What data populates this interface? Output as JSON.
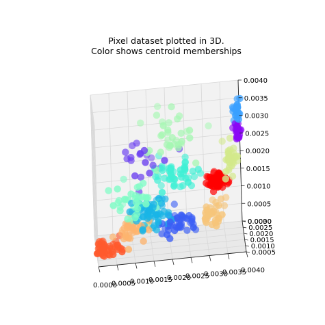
{
  "chart_data": {
    "type": "scatter",
    "dims": 3,
    "title": "Pixel dataset plotted in 3D.",
    "subtitle": "Color shows centroid memberships",
    "xlabel": "",
    "ylabel": "",
    "zlabel": "",
    "grid": true,
    "legend": "none",
    "x_ticks": [
      "0.0000",
      "0.0005",
      "0.0010",
      "0.0015",
      "0.0020",
      "0.0025",
      "0.0030",
      "0.0035",
      "0.0040"
    ],
    "y_ticks": [
      "0.0005",
      "0.0010",
      "0.0015",
      "0.0020",
      "0.0025",
      "0.0030"
    ],
    "z_ticks": [
      "0.0000",
      "0.0005",
      "0.0010",
      "0.0015",
      "0.0020",
      "0.0025",
      "0.0030",
      "0.0035",
      "0.0040"
    ],
    "xlim": [
      0,
      0.004
    ],
    "ylim": [
      0.0005,
      0.003
    ],
    "zlim": [
      0,
      0.004
    ],
    "clusters": [
      {
        "color": "#ff0000",
        "center": [
          0.0033,
          0.0018,
          0.00165
        ],
        "spread": [
          0.00018,
          0.0003,
          0.00015
        ],
        "count": 70
      },
      {
        "color": "#ff5a2d",
        "center": [
          0.0003,
          0.0016,
          0.00013
        ],
        "spread": [
          0.00025,
          0.0004,
          0.00013
        ],
        "count": 45
      },
      {
        "color": "#fdb46e",
        "center": [
          0.001,
          0.0017,
          0.00045
        ],
        "spread": [
          0.0003,
          0.0004,
          0.0002
        ],
        "count": 40
      },
      {
        "color": "#f6c57a",
        "center": [
          0.00315,
          0.0016,
          0.00085
        ],
        "spread": [
          0.0002,
          0.0004,
          0.00025
        ],
        "count": 35
      },
      {
        "color": "#d3e98b",
        "center": [
          0.0037,
          0.0017,
          0.0022
        ],
        "spread": [
          0.00015,
          0.0004,
          0.0003
        ],
        "count": 35
      },
      {
        "color": "#a5f7b2",
        "center": [
          0.0022,
          0.0017,
          0.0031
        ],
        "spread": [
          0.0006,
          0.0004,
          0.00045
        ],
        "count": 35
      },
      {
        "color": "#7ffcc6",
        "center": [
          0.001,
          0.0017,
          0.00135
        ],
        "spread": [
          0.0004,
          0.0004,
          0.00045
        ],
        "count": 40
      },
      {
        "color": "#40f0d5",
        "center": [
          0.0022,
          0.0017,
          0.002
        ],
        "spread": [
          0.0005,
          0.0004,
          0.0003
        ],
        "count": 50
      },
      {
        "color": "#19b5e6",
        "center": [
          0.0015,
          0.0017,
          0.0009
        ],
        "spread": [
          0.0004,
          0.0004,
          0.0003
        ],
        "count": 65
      },
      {
        "color": "#3b5ef5",
        "center": [
          0.0022,
          0.0016,
          0.00065
        ],
        "spread": [
          0.00035,
          0.0004,
          0.00025
        ],
        "count": 45
      },
      {
        "color": "#6a3ff0",
        "center": [
          0.0013,
          0.0017,
          0.0024
        ],
        "spread": [
          0.0005,
          0.0004,
          0.0004
        ],
        "count": 20
      },
      {
        "color": "#8a08f5",
        "center": [
          0.0039,
          0.0017,
          0.003
        ],
        "spread": [
          0.0001,
          0.0003,
          0.00015
        ],
        "count": 25
      },
      {
        "color": "#3aa0ff",
        "center": [
          0.0039,
          0.0017,
          0.0036
        ],
        "spread": [
          8e-05,
          0.0003,
          0.00025
        ],
        "count": 25
      }
    ]
  }
}
